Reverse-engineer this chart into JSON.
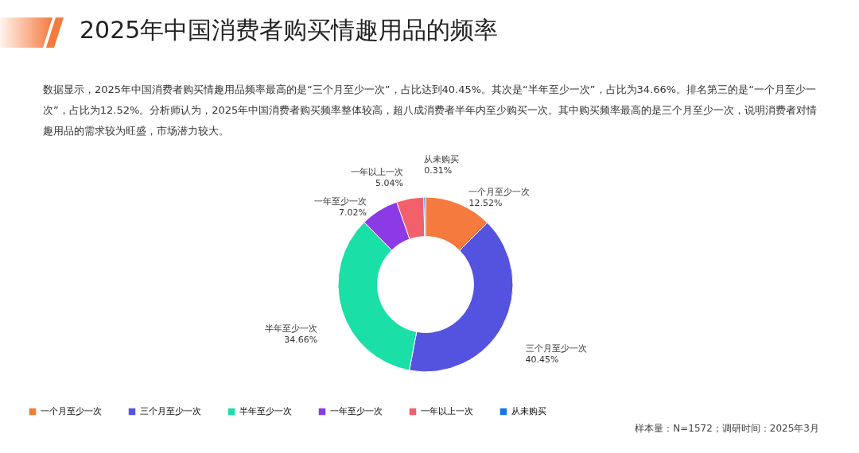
{
  "chart_data": {
    "type": "donut",
    "title": "2025年中国消费者购买情趣用品的频率",
    "subtitle": "数据显示，2025年中国消费者购买情趣用品频率最高的是“三个月至少一次”，占比达到40.45%。其次是“半年至少一次”，占比为34.66%。排名第三的是“一个月至少一次”，占比为12.52%。分析师认为，2025年中国消费者购买频率整体较高，超八成消费者半年内至少购买一次。其中购买频率最高的是三个月至少一次，说明消费者对情趣用品的需求较为旺盛，市场潜力较大。",
    "categories": [
      "一个月至少一次",
      "三个月至少一次",
      "半年至少一次",
      "一年至少一次",
      "一年以上一次",
      "从未购买"
    ],
    "values": [
      12.52,
      40.45,
      34.66,
      7.02,
      5.04,
      0.31
    ],
    "value_labels": [
      "12.52%",
      "40.45%",
      "34.66%",
      "7.02%",
      "5.04%",
      "0.31%"
    ],
    "colors": [
      "#f47a3e",
      "#5453e0",
      "#1adfa6",
      "#8c3ae6",
      "#f2606b",
      "#1a73e8"
    ],
    "legend": "bottom",
    "annotations": [
      "样本量：N=1572；调研时间：2025年3月"
    ]
  }
}
